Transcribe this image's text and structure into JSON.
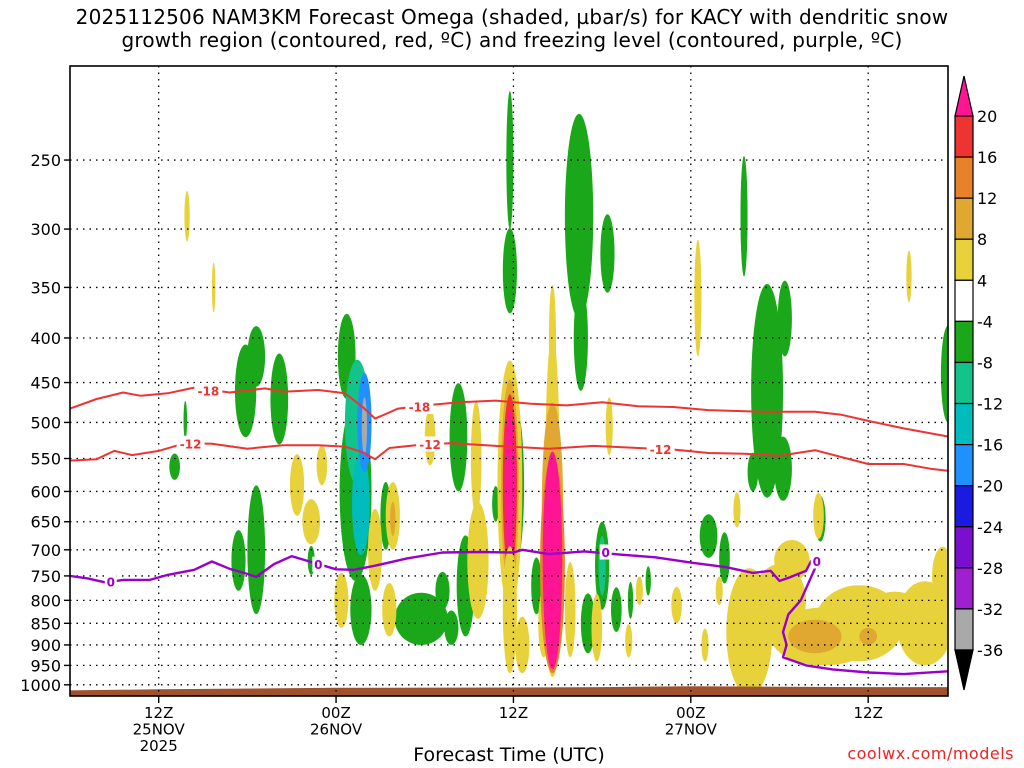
{
  "title": {
    "line1": "2025112506 NAM3KM Forecast Omega (shaded, µbar/s) for KACY with dendritic snow",
    "line2": "growth region (contoured, red, ºC) and freezing level (contoured, purple, ºC)"
  },
  "footer": {
    "x_axis_title": "Forecast Time (UTC)",
    "credit": "coolwx.com/models"
  },
  "colors": {
    "dgz_contour": "#ee3333",
    "freezing_contour": "#9900cc",
    "terrain": "#a0522d"
  },
  "chart_data": {
    "type": "heatmap",
    "title": "2025112506 NAM3KM Forecast Omega (shaded, µbar/s) for KACY with dendritic snow growth region (contoured, red, ºC) and freezing level (contoured, purple, ºC)",
    "xlabel": "Forecast Time (UTC)",
    "ylabel": "",
    "y_scale": "log-pressure",
    "ylim_hpa": [
      1030,
      195
    ],
    "xlim_hours_after_12Z_25NOV": [
      -5,
      44.5
    ],
    "grid": true,
    "y_ticks": [
      "250",
      "300",
      "350",
      "400",
      "450",
      "500",
      "550",
      "600",
      "650",
      "700",
      "750",
      "800",
      "850",
      "900",
      "950",
      "1000"
    ],
    "x_ticks": [
      {
        "hour": 0,
        "lines": [
          "12Z",
          "25NOV",
          "2025"
        ]
      },
      {
        "hour": 10,
        "lines": [
          "00Z",
          "26NOV"
        ]
      },
      {
        "hour": 20,
        "lines": [
          "12Z"
        ]
      },
      {
        "hour": 30,
        "lines": [
          "00Z",
          "27NOV"
        ]
      },
      {
        "hour": 40,
        "lines": [
          "12Z"
        ]
      }
    ],
    "colorbar": {
      "labels": [
        "20",
        "16",
        "12",
        "8",
        "4",
        "-4",
        "-8",
        "-12",
        "-16",
        "-20",
        "-24",
        "-28",
        "-32",
        "-36"
      ],
      "colors": [
        "#ff1493",
        "#ee3333",
        "#e8822a",
        "#e0a830",
        "#e8d23c",
        "#ffffff",
        "#1aa81a",
        "#13c48a",
        "#00bcbc",
        "#1e90ff",
        "#1a1ae0",
        "#7a0fd0",
        "#a020d0",
        "#a9a9a9",
        "#000000"
      ]
    },
    "contours": {
      "minus18_label": "-18",
      "minus12_label": "-12",
      "freezing_label": "0",
      "minus18": [
        [
          -5,
          482
        ],
        [
          -3.5,
          470
        ],
        [
          -2,
          462
        ],
        [
          -1,
          466
        ],
        [
          0.5,
          463
        ],
        [
          2,
          456
        ],
        [
          4,
          462
        ],
        [
          6,
          457
        ],
        [
          7,
          461
        ],
        [
          9,
          459
        ],
        [
          10.5,
          463
        ],
        [
          11.5,
          480
        ],
        [
          12.2,
          495
        ],
        [
          13.5,
          482
        ],
        [
          15,
          478
        ],
        [
          17,
          474
        ],
        [
          19,
          472
        ],
        [
          21,
          476
        ],
        [
          23,
          478
        ],
        [
          25,
          474
        ],
        [
          27,
          479
        ],
        [
          29,
          480
        ],
        [
          31,
          484
        ],
        [
          34,
          486
        ],
        [
          37,
          486
        ],
        [
          38.5,
          490
        ],
        [
          40,
          498
        ],
        [
          42,
          508
        ],
        [
          44.5,
          519
        ]
      ],
      "minus12": [
        [
          -5,
          553
        ],
        [
          -3.5,
          551
        ],
        [
          -2.5,
          539
        ],
        [
          -1.5,
          545
        ],
        [
          0,
          539
        ],
        [
          1.5,
          528
        ],
        [
          3,
          529
        ],
        [
          5,
          536
        ],
        [
          7,
          531
        ],
        [
          9,
          531
        ],
        [
          10.5,
          533
        ],
        [
          11.5,
          541
        ],
        [
          12.2,
          551
        ],
        [
          13,
          535
        ],
        [
          14.5,
          531
        ],
        [
          16.5,
          528
        ],
        [
          19,
          532
        ],
        [
          22,
          536
        ],
        [
          24.5,
          532
        ],
        [
          27,
          535
        ],
        [
          29,
          537
        ],
        [
          31,
          542
        ],
        [
          33,
          543
        ],
        [
          35,
          546
        ],
        [
          37,
          538
        ],
        [
          38.5,
          548
        ],
        [
          40,
          558
        ],
        [
          42,
          558
        ],
        [
          43.5,
          565
        ],
        [
          44.5,
          568
        ]
      ],
      "freezing": [
        [
          -5,
          750
        ],
        [
          -4,
          755
        ],
        [
          -3,
          763
        ],
        [
          -2,
          758
        ],
        [
          -0.5,
          758
        ],
        [
          0.5,
          748
        ],
        [
          2,
          738
        ],
        [
          3,
          722
        ],
        [
          4,
          736
        ],
        [
          5,
          746
        ],
        [
          5.5,
          752
        ],
        [
          6.5,
          727
        ],
        [
          7.5,
          712
        ],
        [
          8.5,
          722
        ],
        [
          10,
          737
        ],
        [
          11,
          738
        ],
        [
          12.2,
          730
        ],
        [
          14,
          716
        ],
        [
          16,
          705
        ],
        [
          18,
          704
        ],
        [
          20,
          705
        ],
        [
          20.5,
          700
        ],
        [
          22,
          708
        ],
        [
          24,
          703
        ],
        [
          26,
          709
        ],
        [
          28,
          714
        ],
        [
          30,
          724
        ],
        [
          32,
          733
        ],
        [
          33.5,
          744
        ],
        [
          34.5,
          740
        ],
        [
          35,
          760
        ],
        [
          35.5,
          754
        ],
        [
          36.5,
          740
        ],
        [
          36.8,
          720
        ],
        [
          37,
          735
        ],
        [
          36.2,
          800
        ],
        [
          35.5,
          830
        ],
        [
          35.2,
          870
        ],
        [
          35.4,
          900
        ],
        [
          35.2,
          930
        ],
        [
          36.5,
          950
        ],
        [
          38,
          960
        ],
        [
          40,
          968
        ],
        [
          42,
          972
        ],
        [
          44.5,
          965
        ]
      ]
    },
    "omega_regions": [
      {
        "t": 0.9,
        "p": 562,
        "dt": 0.3,
        "dp": 20,
        "v": -5
      },
      {
        "t": 1.5,
        "p": 497,
        "dt": 0.1,
        "dp": 26,
        "v": -5
      },
      {
        "t": 4.9,
        "p": 460,
        "dt": 0.6,
        "dp": 60,
        "v": -5
      },
      {
        "t": 5.5,
        "p": 420,
        "dt": 0.5,
        "dp": 35,
        "v": -6
      },
      {
        "t": 6.8,
        "p": 470,
        "dt": 0.5,
        "dp": 60,
        "v": -5
      },
      {
        "t": 5.5,
        "p": 700,
        "dt": 0.5,
        "dp": 130,
        "v": -5
      },
      {
        "t": 4.5,
        "p": 720,
        "dt": 0.4,
        "dp": 60,
        "v": -5
      },
      {
        "t": 8.6,
        "p": 720,
        "dt": 0.2,
        "dp": 28,
        "v": -5
      },
      {
        "t": 10.6,
        "p": 420,
        "dt": 0.5,
        "dp": 50,
        "v": -5
      },
      {
        "t": 11.1,
        "p": 600,
        "dt": 0.9,
        "dp": 160,
        "v": -5
      },
      {
        "t": 11.2,
        "p": 500,
        "dt": 0.7,
        "dp": 90,
        "v": -9
      },
      {
        "t": 11.4,
        "p": 620,
        "dt": 0.5,
        "dp": 90,
        "v": -12
      },
      {
        "t": 11.6,
        "p": 500,
        "dt": 0.4,
        "dp": 70,
        "v": -18
      },
      {
        "t": 11.6,
        "p": 505,
        "dt": 0.15,
        "dp": 40,
        "v": -34
      },
      {
        "t": 11.4,
        "p": 820,
        "dt": 0.6,
        "dp": 80,
        "v": -5
      },
      {
        "t": 12.8,
        "p": 640,
        "dt": 0.3,
        "dp": 60,
        "v": -5
      },
      {
        "t": 14.8,
        "p": 840,
        "dt": 1.5,
        "dp": 60,
        "v": -5
      },
      {
        "t": 16.0,
        "p": 780,
        "dt": 0.4,
        "dp": 40,
        "v": -5
      },
      {
        "t": 16.5,
        "p": 860,
        "dt": 0.4,
        "dp": 40,
        "v": -5
      },
      {
        "t": 16.9,
        "p": 520,
        "dt": 0.5,
        "dp": 80,
        "v": -5
      },
      {
        "t": 17.3,
        "p": 770,
        "dt": 0.5,
        "dp": 110,
        "v": -5
      },
      {
        "t": 19.0,
        "p": 620,
        "dt": 0.2,
        "dp": 30,
        "v": -5
      },
      {
        "t": 20.1,
        "p": 590,
        "dt": 0.5,
        "dp": 140,
        "v": -5
      },
      {
        "t": 20.1,
        "p": 615,
        "dt": 0.2,
        "dp": 60,
        "v": -12
      },
      {
        "t": 19.8,
        "p": 250,
        "dt": 0.2,
        "dp": 50,
        "v": -5
      },
      {
        "t": 19.8,
        "p": 335,
        "dt": 0.4,
        "dp": 40,
        "v": -5
      },
      {
        "t": 21.3,
        "p": 770,
        "dt": 0.3,
        "dp": 60,
        "v": -5
      },
      {
        "t": 23.7,
        "p": 290,
        "dt": 0.8,
        "dp": 90,
        "v": -5
      },
      {
        "t": 23.8,
        "p": 400,
        "dt": 0.4,
        "dp": 60,
        "v": -5
      },
      {
        "t": 24.2,
        "p": 850,
        "dt": 0.4,
        "dp": 70,
        "v": -5
      },
      {
        "t": 25.0,
        "p": 730,
        "dt": 0.4,
        "dp": 90,
        "v": -5
      },
      {
        "t": 25.0,
        "p": 730,
        "dt": 0.2,
        "dp": 60,
        "v": -10
      },
      {
        "t": 25.3,
        "p": 320,
        "dt": 0.4,
        "dp": 35,
        "v": -5
      },
      {
        "t": 25.8,
        "p": 820,
        "dt": 0.3,
        "dp": 50,
        "v": -5
      },
      {
        "t": 26.6,
        "p": 800,
        "dt": 0.15,
        "dp": 40,
        "v": -5
      },
      {
        "t": 27.6,
        "p": 760,
        "dt": 0.15,
        "dp": 30,
        "v": -5
      },
      {
        "t": 31.0,
        "p": 675,
        "dt": 0.5,
        "dp": 40,
        "v": -5
      },
      {
        "t": 31.9,
        "p": 715,
        "dt": 0.3,
        "dp": 50,
        "v": -5
      },
      {
        "t": 33.0,
        "p": 290,
        "dt": 0.2,
        "dp": 50,
        "v": -5
      },
      {
        "t": 33.5,
        "p": 570,
        "dt": 0.3,
        "dp": 30,
        "v": -5
      },
      {
        "t": 34.3,
        "p": 460,
        "dt": 0.9,
        "dp": 150,
        "v": -5
      },
      {
        "t": 34.5,
        "p": 440,
        "dt": 0.6,
        "dp": 80,
        "v": -7
      },
      {
        "t": 35.2,
        "p": 565,
        "dt": 0.5,
        "dp": 50,
        "v": -5
      },
      {
        "t": 35.3,
        "p": 380,
        "dt": 0.4,
        "dp": 40,
        "v": -5
      },
      {
        "t": 37.3,
        "p": 645,
        "dt": 0.3,
        "dp": 40,
        "v": -5
      },
      {
        "t": 44.5,
        "p": 440,
        "dt": 0.4,
        "dp": 60,
        "v": -5
      },
      {
        "t": 1.6,
        "p": 290,
        "dt": 0.15,
        "dp": 20,
        "v": 6
      },
      {
        "t": 3.1,
        "p": 350,
        "dt": 0.1,
        "dp": 24,
        "v": 6
      },
      {
        "t": 7.8,
        "p": 590,
        "dt": 0.4,
        "dp": 50,
        "v": 6
      },
      {
        "t": 8.6,
        "p": 650,
        "dt": 0.5,
        "dp": 40,
        "v": 6
      },
      {
        "t": 9.2,
        "p": 560,
        "dt": 0.3,
        "dp": 30,
        "v": 6
      },
      {
        "t": 10.3,
        "p": 800,
        "dt": 0.4,
        "dp": 60,
        "v": 6
      },
      {
        "t": 12.2,
        "p": 700,
        "dt": 0.4,
        "dp": 80,
        "v": 6
      },
      {
        "t": 13.2,
        "p": 640,
        "dt": 0.4,
        "dp": 60,
        "v": 6
      },
      {
        "t": 13.2,
        "p": 645,
        "dt": 0.15,
        "dp": 30,
        "v": 10
      },
      {
        "t": 13.0,
        "p": 820,
        "dt": 0.4,
        "dp": 60,
        "v": 6
      },
      {
        "t": 15.3,
        "p": 520,
        "dt": 0.3,
        "dp": 40,
        "v": 6
      },
      {
        "t": 17.9,
        "p": 550,
        "dt": 0.3,
        "dp": 90,
        "v": 6
      },
      {
        "t": 18.0,
        "p": 720,
        "dt": 0.6,
        "dp": 120,
        "v": 6
      },
      {
        "t": 19.8,
        "p": 590,
        "dt": 0.7,
        "dp": 230,
        "v": 6
      },
      {
        "t": 19.8,
        "p": 590,
        "dt": 0.5,
        "dp": 190,
        "v": 10
      },
      {
        "t": 19.8,
        "p": 590,
        "dt": 0.4,
        "dp": 160,
        "v": 16
      },
      {
        "t": 19.8,
        "p": 590,
        "dt": 0.3,
        "dp": 130,
        "v": 22
      },
      {
        "t": 19.8,
        "p": 820,
        "dt": 0.4,
        "dp": 150,
        "v": 6
      },
      {
        "t": 20.5,
        "p": 900,
        "dt": 0.4,
        "dp": 70,
        "v": 6
      },
      {
        "t": 21.7,
        "p": 850,
        "dt": 0.3,
        "dp": 80,
        "v": 6
      },
      {
        "t": 22.2,
        "p": 560,
        "dt": 0.4,
        "dp": 230,
        "v": 6
      },
      {
        "t": 22.2,
        "p": 680,
        "dt": 0.6,
        "dp": 300,
        "v": 6
      },
      {
        "t": 22.2,
        "p": 400,
        "dt": 0.2,
        "dp": 60,
        "v": 6
      },
      {
        "t": 22.2,
        "p": 620,
        "dt": 0.6,
        "dp": 190,
        "v": 10
      },
      {
        "t": 22.2,
        "p": 730,
        "dt": 0.7,
        "dp": 240,
        "v": 14
      },
      {
        "t": 22.2,
        "p": 720,
        "dt": 0.55,
        "dp": 240,
        "v": 22
      },
      {
        "t": 23.2,
        "p": 820,
        "dt": 0.3,
        "dp": 110,
        "v": 6
      },
      {
        "t": 24.7,
        "p": 860,
        "dt": 0.3,
        "dp": 80,
        "v": 6
      },
      {
        "t": 25.4,
        "p": 505,
        "dt": 0.2,
        "dp": 40,
        "v": 6
      },
      {
        "t": 26.5,
        "p": 890,
        "dt": 0.2,
        "dp": 40,
        "v": 6
      },
      {
        "t": 27.1,
        "p": 780,
        "dt": 0.2,
        "dp": 30,
        "v": 6
      },
      {
        "t": 30.4,
        "p": 360,
        "dt": 0.2,
        "dp": 60,
        "v": 6
      },
      {
        "t": 29.2,
        "p": 810,
        "dt": 0.3,
        "dp": 40,
        "v": 6
      },
      {
        "t": 31.6,
        "p": 780,
        "dt": 0.2,
        "dp": 30,
        "v": 6
      },
      {
        "t": 30.8,
        "p": 900,
        "dt": 0.2,
        "dp": 40,
        "v": 6
      },
      {
        "t": 32.6,
        "p": 630,
        "dt": 0.2,
        "dp": 30,
        "v": 6
      },
      {
        "t": 33.3,
        "p": 870,
        "dt": 1.3,
        "dp": 160,
        "v": 6
      },
      {
        "t": 35.0,
        "p": 800,
        "dt": 1.5,
        "dp": 80,
        "v": 6
      },
      {
        "t": 35.7,
        "p": 720,
        "dt": 1.0,
        "dp": 40,
        "v": 6
      },
      {
        "t": 37.5,
        "p": 880,
        "dt": 3.0,
        "dp": 70,
        "v": 6
      },
      {
        "t": 37.2,
        "p": 640,
        "dt": 0.3,
        "dp": 40,
        "v": 6
      },
      {
        "t": 39.5,
        "p": 850,
        "dt": 2.5,
        "dp": 90,
        "v": 6
      },
      {
        "t": 41.5,
        "p": 820,
        "dt": 1.5,
        "dp": 40,
        "v": 6
      },
      {
        "t": 43.2,
        "p": 850,
        "dt": 1.6,
        "dp": 100,
        "v": 6
      },
      {
        "t": 44.2,
        "p": 750,
        "dt": 0.6,
        "dp": 60,
        "v": 6
      },
      {
        "t": 37.0,
        "p": 880,
        "dt": 1.5,
        "dp": 40,
        "v": 10
      },
      {
        "t": 40.0,
        "p": 880,
        "dt": 0.5,
        "dp": 20,
        "v": 10
      },
      {
        "t": 42.3,
        "p": 340,
        "dt": 0.15,
        "dp": 24,
        "v": 6
      }
    ],
    "terrain": [
      [
        -5,
        1015
      ],
      [
        0,
        1012
      ],
      [
        10,
        1008
      ],
      [
        20,
        1007
      ],
      [
        25,
        1006
      ],
      [
        30,
        1004
      ],
      [
        35,
        1005
      ],
      [
        40,
        1006
      ],
      [
        44.5,
        1006
      ]
    ]
  }
}
